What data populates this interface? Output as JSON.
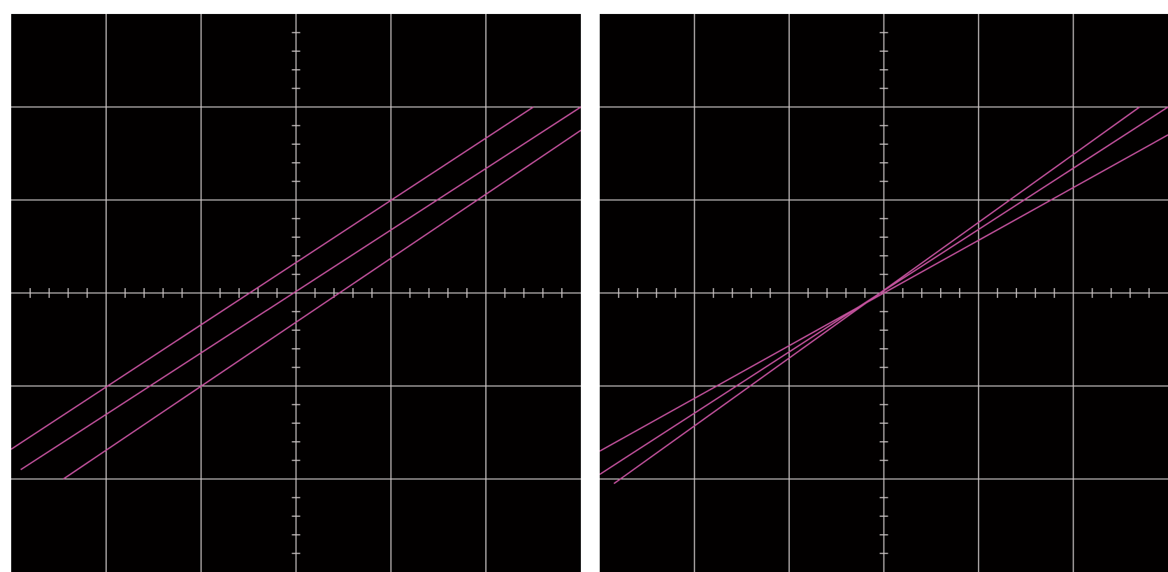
{
  "colors": {
    "background": "#020000",
    "grid": "#c8c2c2",
    "trace": "#c0509a",
    "frame": "#ffffff"
  },
  "chart_data": [
    {
      "type": "line",
      "grid": true,
      "divisions": {
        "x": 6,
        "y": 6
      },
      "minor_ticks_per_division": 5,
      "xlim": [
        -3,
        3
      ],
      "ylim": [
        -3,
        3
      ],
      "series": [
        {
          "x": [
            -3.0,
            2.5
          ],
          "y": [
            -1.68,
            2.0
          ]
        },
        {
          "x": [
            -2.9,
            3.0
          ],
          "y": [
            -1.9,
            2.0
          ]
        },
        {
          "x": [
            -2.45,
            3.0
          ],
          "y": [
            -2.0,
            1.75
          ]
        }
      ]
    },
    {
      "type": "line",
      "grid": true,
      "divisions": {
        "x": 6,
        "y": 6
      },
      "minor_ticks_per_division": 5,
      "xlim": [
        -3,
        3
      ],
      "ylim": [
        -3,
        3
      ],
      "series": [
        {
          "x": [
            -3.0,
            3.0
          ],
          "y": [
            -1.7,
            1.7
          ]
        },
        {
          "x": [
            -3.0,
            3.0
          ],
          "y": [
            -1.95,
            2.0
          ]
        },
        {
          "x": [
            -2.85,
            2.7
          ],
          "y": [
            -2.05,
            2.0
          ]
        }
      ]
    }
  ]
}
